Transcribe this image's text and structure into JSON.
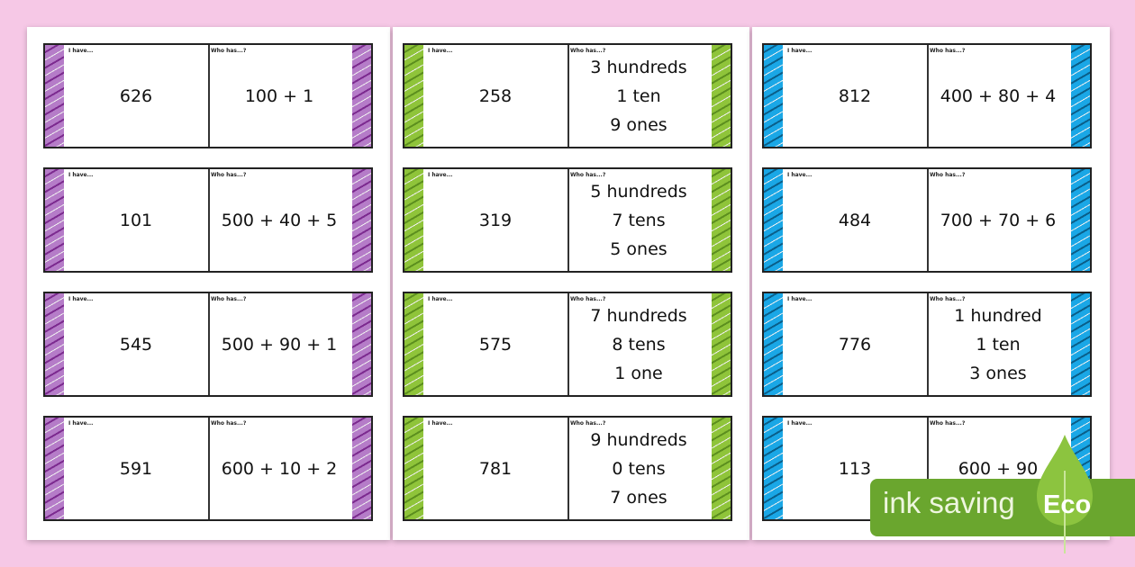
{
  "labels": {
    "i_have": "I have...",
    "who_has": "Who has...?"
  },
  "columns": [
    {
      "color": "#b57cc8",
      "stripe": "#7c2a8f",
      "cards": [
        {
          "have": "626",
          "who": [
            "100 + 1"
          ]
        },
        {
          "have": "101",
          "who": [
            "500 + 40 + 5"
          ]
        },
        {
          "have": "545",
          "who": [
            "500 + 90 + 1"
          ]
        },
        {
          "have": "591",
          "who": [
            "600 + 10 + 2"
          ]
        }
      ]
    },
    {
      "color": "#8fc43a",
      "stripe": "#5c8f1e",
      "cards": [
        {
          "have": "258",
          "who": [
            "3 hundreds",
            "1 ten",
            "9 ones"
          ]
        },
        {
          "have": "319",
          "who": [
            "5 hundreds",
            "7 tens",
            "5 ones"
          ]
        },
        {
          "have": "575",
          "who": [
            "7 hundreds",
            "8 tens",
            "1 one"
          ]
        },
        {
          "have": "781",
          "who": [
            "9 hundreds",
            "0 tens",
            "7 ones"
          ]
        }
      ]
    },
    {
      "color": "#1aa7e6",
      "stripe": "#0a5f8a",
      "cards": [
        {
          "have": "812",
          "who": [
            "400 + 80 + 4"
          ]
        },
        {
          "have": "484",
          "who": [
            "700 + 70 + 6"
          ]
        },
        {
          "have": "776",
          "who": [
            "1 hundred",
            "1 ten",
            "3 ones"
          ]
        },
        {
          "have": "113",
          "who": [
            "600 + 90"
          ]
        }
      ]
    }
  ],
  "badge": {
    "text": "ink saving",
    "eco": "Eco",
    "color": "#6aa62e"
  }
}
